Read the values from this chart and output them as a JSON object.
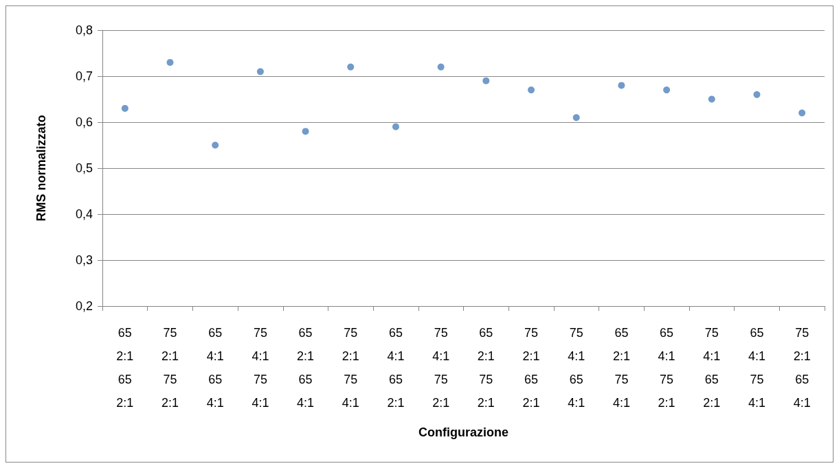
{
  "chart_data": {
    "type": "scatter",
    "xlabel": "Configurazione",
    "ylabel": "RMS normalizzato",
    "categories": [
      "65\n2:1\n65\n2:1",
      "75\n2:1\n75\n2:1",
      "65\n4:1\n65\n4:1",
      "75\n4:1\n75\n4:1",
      "65\n2:1\n65\n4:1",
      "75\n2:1\n75\n4:1",
      "65\n4:1\n65\n2:1",
      "75\n4:1\n75\n2:1",
      "65\n2:1\n75\n2:1",
      "75\n2:1\n65\n2:1",
      "75\n4:1\n65\n4:1",
      "65\n2:1\n75\n4:1",
      "65\n4:1\n75\n2:1",
      "75\n4:1\n65\n2:1",
      "65\n4:1\n75\n4:1",
      "75\n2:1\n65\n4:1"
    ],
    "series": [
      {
        "color": "#4f81bd",
        "values": [
          0.63,
          0.73,
          0.55,
          0.71,
          0.58,
          0.72,
          0.59,
          0.72,
          0.69,
          0.67,
          0.61,
          0.68,
          0.67,
          0.65,
          0.66,
          0.62
        ]
      }
    ],
    "ylim": [
      0.2,
      0.8
    ],
    "yticks": [
      {
        "value": 0.2,
        "label": "0,2"
      },
      {
        "value": 0.3,
        "label": "0,3"
      },
      {
        "value": 0.4,
        "label": "0,4"
      },
      {
        "value": 0.5,
        "label": "0,5"
      },
      {
        "value": 0.6,
        "label": "0,6"
      },
      {
        "value": 0.7,
        "label": "0,7"
      },
      {
        "value": 0.8,
        "label": "0,8"
      }
    ],
    "grid": "y",
    "marker": "circle"
  }
}
